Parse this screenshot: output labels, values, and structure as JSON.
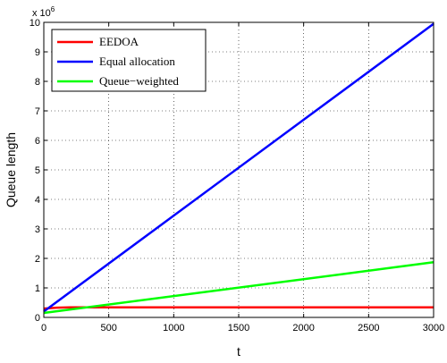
{
  "chart_data": {
    "type": "line",
    "xlabel": "t",
    "ylabel": "Queue length",
    "xlim": [
      0,
      3000
    ],
    "ylim": [
      0,
      10
    ],
    "y_scale_note_base": "x 10",
    "y_scale_note_exp": "6",
    "x_ticks": [
      0,
      500,
      1000,
      1500,
      2000,
      2500,
      3000
    ],
    "y_ticks": [
      0,
      1,
      2,
      3,
      4,
      5,
      6,
      7,
      8,
      9,
      10
    ],
    "grid": true,
    "legend_position": "top-left",
    "series": [
      {
        "name": "EEDOA",
        "color": "#ff0000",
        "x": [
          0,
          100,
          200,
          500,
          1000,
          1500,
          2000,
          2500,
          3000
        ],
        "y": [
          0.3,
          0.33,
          0.34,
          0.34,
          0.34,
          0.34,
          0.34,
          0.34,
          0.34
        ]
      },
      {
        "name": "Equal allocation",
        "color": "#0000ff",
        "x": [
          0,
          3000
        ],
        "y": [
          0.2,
          9.95
        ]
      },
      {
        "name": "Queue−weighted",
        "color": "#00ff00",
        "x": [
          0,
          3000
        ],
        "y": [
          0.15,
          1.87
        ]
      }
    ]
  }
}
